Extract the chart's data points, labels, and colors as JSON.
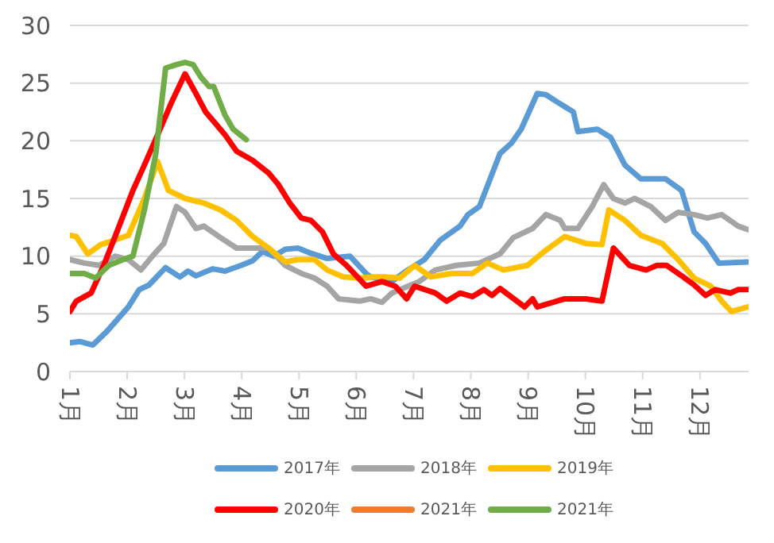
{
  "chart_data": {
    "type": "line",
    "xlim": [
      1,
      12.85
    ],
    "xticks": [
      {
        "value": 1,
        "label": "1月"
      },
      {
        "value": 2,
        "label": "2月"
      },
      {
        "value": 3,
        "label": "3月"
      },
      {
        "value": 4,
        "label": "4月"
      },
      {
        "value": 5,
        "label": "5月"
      },
      {
        "value": 6,
        "label": "6月"
      },
      {
        "value": 7,
        "label": "7月"
      },
      {
        "value": 8,
        "label": "8月"
      },
      {
        "value": 9,
        "label": "9月"
      },
      {
        "value": 10,
        "label": "10月"
      },
      {
        "value": 11,
        "label": "11月"
      },
      {
        "value": 12,
        "label": "12月"
      }
    ],
    "ylim": [
      0,
      30
    ],
    "yticks": [
      0,
      5,
      10,
      15,
      20,
      25,
      30
    ],
    "grid": "y",
    "legend": "bottom",
    "marker": "none",
    "line_style": "solid",
    "series": [
      {
        "name": "2017年",
        "color": "#5b9bd5",
        "x": [
          1,
          1.17,
          1.4,
          1.65,
          2.02,
          2.21,
          2.38,
          2.67,
          2.92,
          3.06,
          3.2,
          3.49,
          3.71,
          3.99,
          4.19,
          4.36,
          4.56,
          4.76,
          4.98,
          5.18,
          5.49,
          5.89,
          6.17,
          6.25,
          6.62,
          6.9,
          7.19,
          7.47,
          7.81,
          7.95,
          8.15,
          8.51,
          8.71,
          8.88,
          9.16,
          9.31,
          9.56,
          9.79,
          9.87,
          10.21,
          10.44,
          10.69,
          10.97,
          11.4,
          11.68,
          11.9,
          12.1,
          12.33,
          12.84
        ],
        "values": [
          2.5,
          2.6,
          2.3,
          3.5,
          5.6,
          7.1,
          7.5,
          9,
          8.2,
          8.7,
          8.3,
          8.9,
          8.7,
          9.2,
          9.6,
          10.4,
          10,
          10.6,
          10.7,
          10.3,
          9.8,
          10,
          8.5,
          8.2,
          7.8,
          8.8,
          9.7,
          11.4,
          12.6,
          13.6,
          14.3,
          18.9,
          19.8,
          21,
          24.1,
          24,
          23.2,
          22.5,
          20.8,
          21,
          20.3,
          17.9,
          16.7,
          16.7,
          15.7,
          12.1,
          11.1,
          9.4,
          9.5
        ]
      },
      {
        "name": "2018年",
        "color": "#a5a5a5",
        "x": [
          1,
          1.25,
          1.51,
          1.79,
          2.02,
          2.24,
          2.44,
          2.64,
          2.86,
          3.01,
          3.2,
          3.34,
          3.63,
          3.91,
          4.19,
          4.47,
          4.76,
          5.04,
          5.27,
          5.49,
          5.69,
          6.06,
          6.25,
          6.45,
          6.62,
          7.1,
          7.38,
          7.75,
          8.15,
          8.51,
          8.74,
          9.08,
          9.31,
          9.56,
          9.64,
          9.87,
          10.12,
          10.32,
          10.49,
          10.69,
          10.86,
          11.14,
          11.4,
          11.62,
          11.9,
          12.13,
          12.38,
          12.67,
          12.84
        ],
        "values": [
          9.7,
          9.4,
          9.2,
          10,
          9.7,
          8.8,
          10,
          11.1,
          14.3,
          13.8,
          12.4,
          12.6,
          11.6,
          10.7,
          10.7,
          10.7,
          9.2,
          8.5,
          8.1,
          7.4,
          6.3,
          6.1,
          6.3,
          6,
          6.8,
          7.8,
          8.8,
          9.2,
          9.4,
          10.2,
          11.6,
          12.4,
          13.6,
          13.1,
          12.4,
          12.4,
          14.3,
          16.2,
          15,
          14.6,
          15,
          14.3,
          13.1,
          13.8,
          13.6,
          13.3,
          13.6,
          12.6,
          12.3
        ]
      },
      {
        "name": "2019年",
        "color": "#ffc000",
        "x": [
          1,
          1.11,
          1.31,
          1.54,
          1.79,
          2.02,
          2.3,
          2.53,
          2.72,
          3.01,
          3.34,
          3.63,
          3.91,
          4.19,
          4.47,
          4.76,
          4.98,
          5.27,
          5.49,
          5.77,
          6.06,
          6.34,
          6.48,
          6.76,
          7.02,
          7.3,
          7.67,
          8.03,
          8.29,
          8.57,
          8.99,
          9.28,
          9.64,
          10.01,
          10.29,
          10.41,
          10.69,
          10.97,
          11.34,
          11.62,
          11.9,
          12.19,
          12.38,
          12.55,
          12.84
        ],
        "values": [
          11.8,
          11.7,
          10.2,
          11,
          11.4,
          11.8,
          15,
          18.2,
          15.7,
          15,
          14.6,
          14,
          13.1,
          11.7,
          10.7,
          9.5,
          9.7,
          9.7,
          8.8,
          8.2,
          8.1,
          8.2,
          8.2,
          8.1,
          9.2,
          8.2,
          8.5,
          8.5,
          9.4,
          8.8,
          9.2,
          10.4,
          11.7,
          11.1,
          11,
          14,
          13.1,
          11.8,
          11.1,
          9.7,
          8.1,
          7.4,
          6.1,
          5.2,
          5.6
        ]
      },
      {
        "name": "2020年",
        "color": "#ff0000",
        "x": [
          1,
          1.11,
          1.37,
          1.59,
          1.82,
          2.1,
          2.3,
          2.53,
          2.78,
          3.01,
          3.2,
          3.37,
          3.71,
          3.91,
          4.19,
          4.47,
          4.64,
          4.84,
          5.04,
          5.21,
          5.41,
          5.6,
          5.83,
          6.17,
          6.45,
          6.68,
          6.88,
          7.02,
          7.38,
          7.58,
          7.81,
          8.03,
          8.23,
          8.37,
          8.51,
          8.94,
          9.08,
          9.16,
          9.64,
          10.01,
          10.29,
          10.49,
          10.77,
          11.06,
          11.25,
          11.42,
          11.71,
          11.9,
          12.1,
          12.27,
          12.53,
          12.67,
          12.84
        ],
        "values": [
          5.2,
          6.1,
          6.8,
          9.2,
          12.1,
          15.7,
          17.9,
          20.5,
          23.4,
          25.8,
          24.1,
          22.5,
          20.5,
          19.1,
          18.3,
          17.2,
          16.2,
          14.6,
          13.3,
          13.1,
          12.1,
          10.2,
          9.2,
          7.4,
          7.8,
          7.4,
          6.3,
          7.4,
          6.8,
          6.1,
          6.8,
          6.5,
          7.1,
          6.6,
          7.2,
          5.6,
          6.3,
          5.6,
          6.3,
          6.3,
          6.1,
          10.7,
          9.2,
          8.8,
          9.2,
          9.2,
          8.2,
          7.5,
          6.6,
          7.1,
          6.8,
          7.1,
          7.1
        ]
      },
      {
        "name": "2021年",
        "color": "#ed7d31"
      },
      {
        "name": "2021年",
        "color": "#70ad47",
        "x": [
          1,
          1.25,
          1.45,
          1.68,
          1.93,
          2.1,
          2.3,
          2.5,
          2.67,
          2.86,
          3.01,
          3.15,
          3.29,
          3.43,
          3.51,
          3.71,
          3.85,
          4.08
        ],
        "values": [
          8.5,
          8.5,
          8.1,
          9.2,
          9.7,
          10,
          14,
          18.9,
          26.3,
          26.6,
          26.8,
          26.6,
          25.5,
          24.7,
          24.7,
          22.2,
          21,
          20.1
        ]
      }
    ]
  }
}
